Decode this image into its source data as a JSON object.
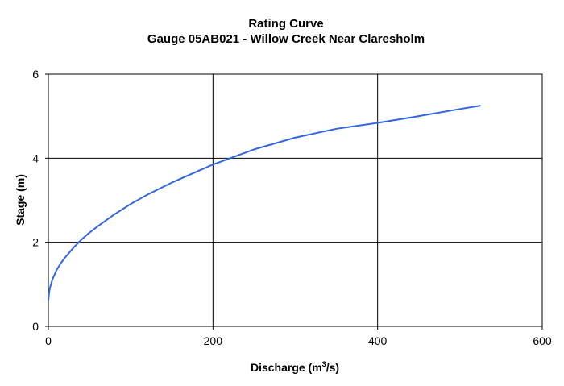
{
  "chart_data": {
    "type": "line",
    "title": "Rating Curve",
    "subtitle": "Gauge 05AB021 - Willow Creek Near Claresholm",
    "xlabel": {
      "pre": "Discharge (m",
      "sup": "3",
      "post": "/s)"
    },
    "ylabel": "Stage (m)",
    "xlim": [
      0,
      600
    ],
    "ylim": [
      0,
      6
    ],
    "xticks": [
      0,
      200,
      400,
      600
    ],
    "yticks": [
      0,
      2,
      4,
      6
    ],
    "grid": true,
    "legend": "none",
    "series": [
      {
        "color": "#3366e6",
        "x": [
          0,
          1,
          2,
          5,
          10,
          15,
          20,
          30,
          40,
          50,
          60,
          80,
          100,
          120,
          150,
          200,
          250,
          300,
          350,
          400,
          450,
          500,
          525
        ],
        "y": [
          0.62,
          0.82,
          0.92,
          1.12,
          1.34,
          1.5,
          1.63,
          1.86,
          2.06,
          2.23,
          2.38,
          2.66,
          2.91,
          3.13,
          3.42,
          3.85,
          4.21,
          4.49,
          4.7,
          4.84,
          5.0,
          5.17,
          5.25
        ]
      }
    ]
  }
}
